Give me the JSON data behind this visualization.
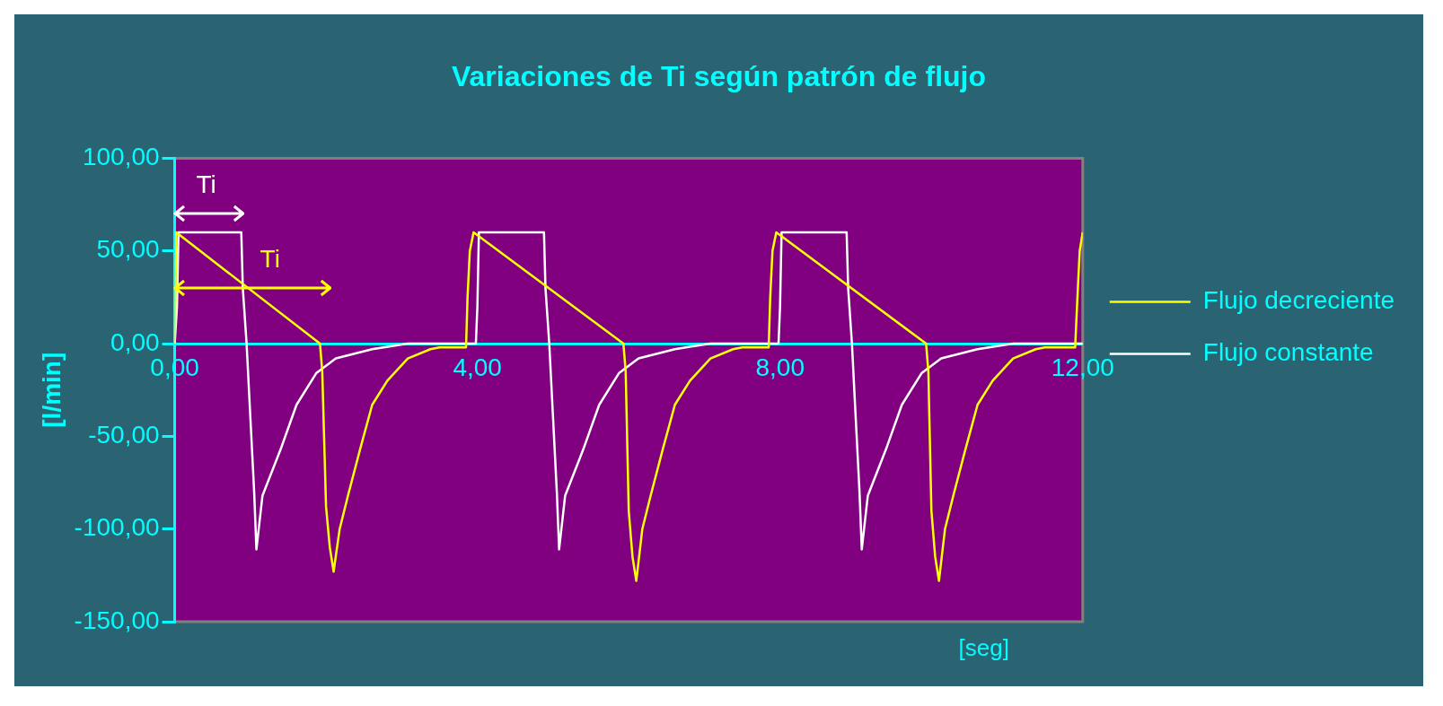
{
  "chart_data": {
    "type": "line",
    "title": "Variaciones de Ti según patrón de flujo",
    "xlabel": "[seg]",
    "ylabel": "[l/min]",
    "xlim": [
      0,
      12
    ],
    "ylim": [
      -150,
      100
    ],
    "xticks": [
      {
        "value": 0,
        "label": "0,00"
      },
      {
        "value": 4,
        "label": "4,00"
      },
      {
        "value": 8,
        "label": "8,00"
      },
      {
        "value": 12,
        "label": "12,00"
      }
    ],
    "yticks": [
      {
        "value": -150,
        "label": "-150,00"
      },
      {
        "value": -100,
        "label": "-100,00"
      },
      {
        "value": -50,
        "label": "-50,00"
      },
      {
        "value": 0,
        "label": "0,00"
      },
      {
        "value": 50,
        "label": "50,00"
      },
      {
        "value": 100,
        "label": "100,00"
      }
    ],
    "grid": false,
    "legend": "right",
    "marker": "none",
    "line_style": "solid",
    "series": [
      {
        "name": "Flujo decreciente",
        "color": "#ffff00",
        "x": [
          0,
          0.02,
          1.92,
          1.95,
          2.0,
          2.05,
          2.1,
          2.18,
          2.29,
          2.45,
          2.61,
          2.81,
          3.08,
          3.38,
          3.5,
          3.85,
          3.87,
          3.9,
          3.95,
          5.93,
          5.96,
          6.0,
          6.05,
          6.1,
          6.18,
          6.29,
          6.45,
          6.61,
          6.81,
          7.08,
          7.38,
          7.5,
          7.85,
          7.87,
          7.9,
          7.95,
          9.93,
          9.96,
          10.0,
          10.05,
          10.1,
          10.18,
          10.29,
          10.45,
          10.61,
          10.81,
          11.08,
          11.38,
          11.5,
          11.9,
          11.93,
          11.96,
          12
        ],
        "values": [
          0,
          60,
          0,
          -15,
          -88,
          -110,
          -123,
          -100,
          -82,
          -57,
          -33,
          -20,
          -8,
          -3,
          -2,
          -2,
          25,
          50,
          60,
          0,
          -15,
          -90,
          -115,
          -128,
          -100,
          -82,
          -57,
          -33,
          -20,
          -8,
          -3,
          -2,
          -2,
          25,
          50,
          60,
          0,
          -15,
          -90,
          -115,
          -128,
          -100,
          -82,
          -57,
          -33,
          -20,
          -8,
          -3,
          -2,
          -2,
          25,
          50,
          60
        ]
      },
      {
        "name": "Flujo constante",
        "color": "#ffffff",
        "x": [
          0,
          0.03,
          0.05,
          0.88,
          0.9,
          0.95,
          1.0,
          1.05,
          1.08,
          1.16,
          1.4,
          1.61,
          1.87,
          2.13,
          2.61,
          3.08,
          3.98,
          4.0,
          4.02,
          4.88,
          4.9,
          4.95,
          5.0,
          5.05,
          5.08,
          5.16,
          5.4,
          5.61,
          5.87,
          6.13,
          6.61,
          7.08,
          7.98,
          8.0,
          8.02,
          8.88,
          8.9,
          8.95,
          9.0,
          9.05,
          9.08,
          9.16,
          9.4,
          9.61,
          9.87,
          10.13,
          10.61,
          11.08,
          12
        ],
        "values": [
          0,
          20,
          60,
          60,
          30,
          0,
          -40,
          -80,
          -111,
          -82,
          -57,
          -33,
          -16,
          -8,
          -3,
          0,
          0,
          20,
          60,
          60,
          30,
          0,
          -40,
          -80,
          -111,
          -82,
          -57,
          -33,
          -16,
          -8,
          -3,
          0,
          0,
          20,
          60,
          60,
          30,
          0,
          -40,
          -80,
          -111,
          -82,
          -57,
          -33,
          -16,
          -8,
          -3,
          0,
          0
        ]
      }
    ],
    "annotations": [
      "Ti",
      "Ti"
    ]
  }
}
